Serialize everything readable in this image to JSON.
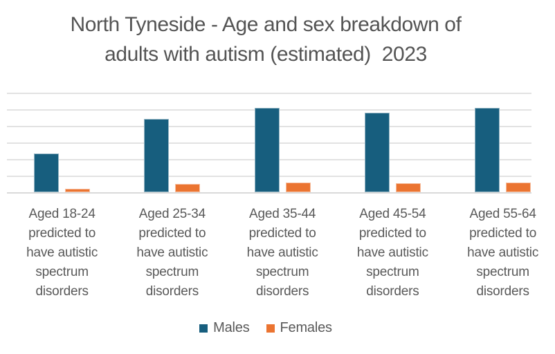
{
  "title": {
    "line1": "North Tyneside - Age and sex breakdown of",
    "line2": "adults with autism (estimated)  2023"
  },
  "colors": {
    "males": "#175e7e",
    "females": "#eb7431",
    "gridline": "#e2e2e2",
    "axis_line": "#d9d9d9",
    "title_text": "#545454",
    "label_text": "#595959"
  },
  "chart_data": {
    "type": "bar",
    "title": "North Tyneside - Age and sex breakdown of adults with autism (estimated)  2023",
    "categories": [
      "Aged 18-24 predicted to have autistic spectrum disorders",
      "Aged 25-34 predicted to have autistic spectrum disorders",
      "Aged 35-44 predicted to have autistic spectrum disorders",
      "Aged 45-54 predicted to have autistic spectrum disorders",
      "Aged 55-64 predicted to have autistic spectrum disorders"
    ],
    "category_label_lines": [
      [
        "Aged 18-24",
        "predicted to",
        "have autistic",
        "spectrum",
        "disorders"
      ],
      [
        "Aged 25-34",
        "predicted to",
        "have autistic",
        "spectrum",
        "disorders"
      ],
      [
        "Aged 35-44",
        "predicted to",
        "have autistic",
        "spectrum",
        "disorders"
      ],
      [
        "Aged 45-54",
        "predicted to",
        "have autistic",
        "spectrum",
        "disorders"
      ],
      [
        "Aged 55-64",
        "predicted to",
        "have autistic",
        "spectrum",
        "disorders"
      ]
    ],
    "series": [
      {
        "name": "Males",
        "color": "#175e7e",
        "values": [
          119,
          224,
          256,
          241,
          257
        ]
      },
      {
        "name": "Females",
        "color": "#eb7431",
        "values": [
          12,
          26,
          30,
          29,
          31
        ]
      }
    ],
    "xlabel": "",
    "ylabel": "",
    "ylim": [
      0,
      300
    ],
    "grid_step": 50,
    "grid": true,
    "y_axis_labels_visible": false,
    "legend_position": "bottom",
    "clipped_right_edge": true
  }
}
